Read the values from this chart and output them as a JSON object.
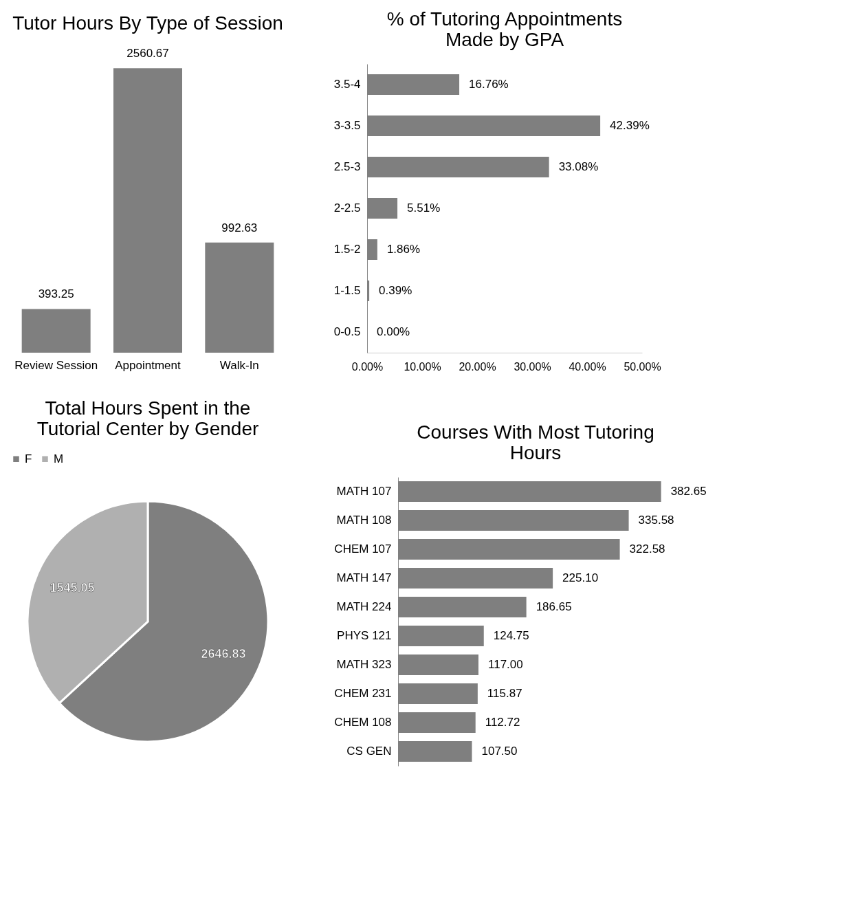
{
  "chart_data": [
    {
      "type": "bar",
      "title": "Tutor Hours By Type of Session",
      "categories": [
        "Review Session",
        "Appointment",
        "Walk-In"
      ],
      "values": [
        393.25,
        2560.67,
        992.63
      ],
      "color": "#7f7f7f",
      "data_labels": true,
      "tick_labels": "x"
    },
    {
      "type": "bar",
      "orientation": "horizontal",
      "title": "% of Tutoring Appointments Made by GPA",
      "categories": [
        "3.5-4",
        "3-3.5",
        "2.5-3",
        "2-2.5",
        "1.5-2",
        "1-1.5",
        "0-0.5"
      ],
      "values": [
        16.76,
        42.39,
        33.08,
        5.51,
        1.86,
        0.39,
        0.0
      ],
      "value_labels": [
        "16.76%",
        "42.39%",
        "33.08%",
        "5.51%",
        "1.86%",
        "0.39%",
        "0.00%"
      ],
      "color": "#7f7f7f",
      "xlim": [
        0,
        50
      ],
      "xticks": [
        {
          "value": 0,
          "label": "0.00%"
        },
        {
          "value": 10,
          "label": "10.00%"
        },
        {
          "value": 20,
          "label": "20.00%"
        },
        {
          "value": 30,
          "label": "30.00%"
        },
        {
          "value": 40,
          "label": "40.00%"
        },
        {
          "value": 50,
          "label": "50.00%"
        }
      ]
    },
    {
      "type": "pie",
      "title": "Total Hours Spent in the Tutorial Center by Gender",
      "categories": [
        "F",
        "M"
      ],
      "values": [
        2646.83,
        1545.05
      ],
      "colors": [
        "#7f7f7f",
        "#b0b0b0"
      ],
      "data_labels": true,
      "legend": "top"
    },
    {
      "type": "bar",
      "orientation": "horizontal",
      "title": "Courses With Most Tutoring Hours",
      "categories": [
        "MATH 107",
        "MATH 108",
        "CHEM 107",
        "MATH 147",
        "MATH 224",
        "PHYS 121",
        "MATH 323",
        "CHEM 231",
        "CHEM 108",
        "CS GEN"
      ],
      "values": [
        382.65,
        335.58,
        322.58,
        225.1,
        186.65,
        124.75,
        117.0,
        115.87,
        112.72,
        107.5
      ],
      "value_labels": [
        "382.65",
        "335.58",
        "322.58",
        "225.10",
        "186.65",
        "124.75",
        "117.00",
        "115.87",
        "112.72",
        "107.50"
      ],
      "color": "#7f7f7f",
      "tick_labels": "y"
    }
  ]
}
